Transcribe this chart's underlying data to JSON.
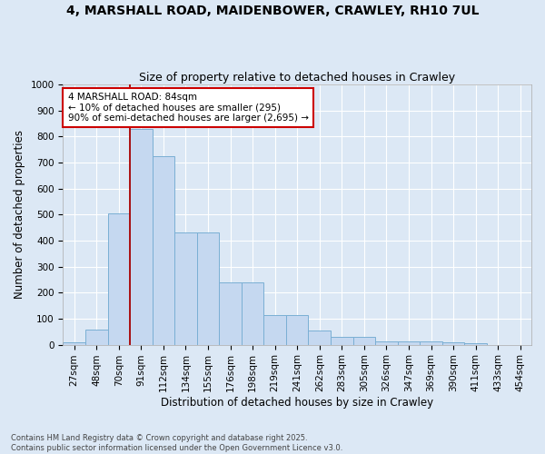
{
  "title_line1": "4, MARSHALL ROAD, MAIDENBOWER, CRAWLEY, RH10 7UL",
  "title_line2": "Size of property relative to detached houses in Crawley",
  "xlabel": "Distribution of detached houses by size in Crawley",
  "ylabel": "Number of detached properties",
  "categories": [
    "27sqm",
    "48sqm",
    "70sqm",
    "91sqm",
    "112sqm",
    "134sqm",
    "155sqm",
    "176sqm",
    "198sqm",
    "219sqm",
    "241sqm",
    "262sqm",
    "283sqm",
    "305sqm",
    "326sqm",
    "347sqm",
    "369sqm",
    "390sqm",
    "411sqm",
    "433sqm",
    "454sqm"
  ],
  "values": [
    8,
    58,
    505,
    830,
    725,
    430,
    430,
    240,
    240,
    115,
    115,
    55,
    30,
    30,
    13,
    13,
    13,
    8,
    5,
    0,
    0
  ],
  "bar_color": "#c5d8f0",
  "bar_edge_color": "#7aafd4",
  "vline_color": "#aa0000",
  "annotation_text": "4 MARSHALL ROAD: 84sqm\n← 10% of detached houses are smaller (295)\n90% of semi-detached houses are larger (2,695) →",
  "annotation_box_color": "#ffffff",
  "annotation_box_edge": "#cc0000",
  "ylim": [
    0,
    1000
  ],
  "yticks": [
    0,
    100,
    200,
    300,
    400,
    500,
    600,
    700,
    800,
    900,
    1000
  ],
  "background_color": "#dce8f5",
  "grid_color": "#ffffff",
  "footnote": "Contains HM Land Registry data © Crown copyright and database right 2025.\nContains public sector information licensed under the Open Government Licence v3.0.",
  "title_fontsize": 10,
  "subtitle_fontsize": 9,
  "axis_label_fontsize": 8.5,
  "tick_fontsize": 7.5,
  "annotation_fontsize": 7.5
}
